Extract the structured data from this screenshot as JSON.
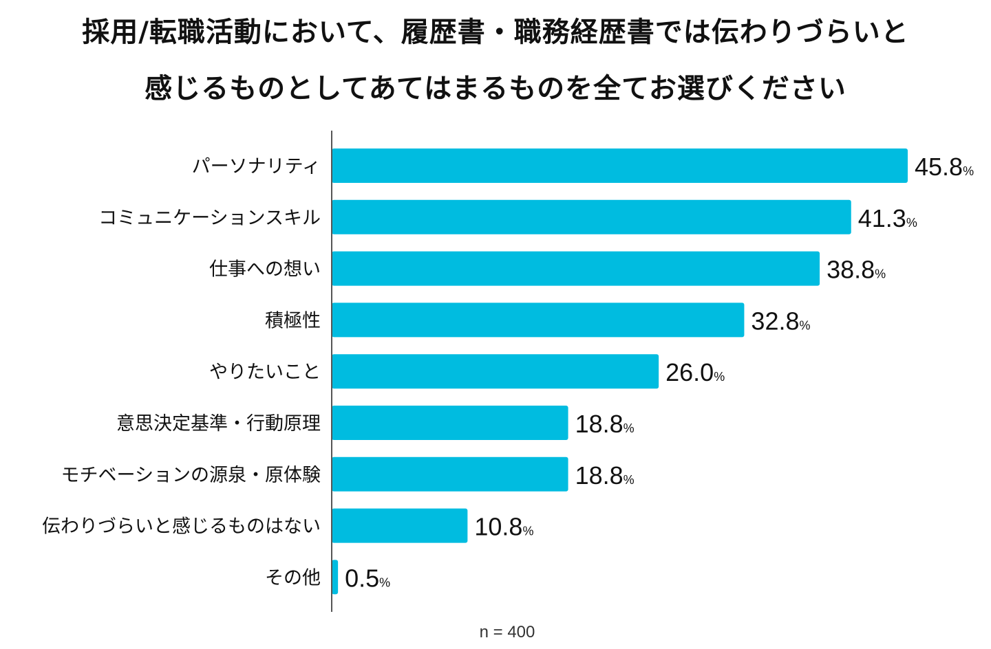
{
  "chart_data": {
    "type": "bar",
    "orientation": "horizontal",
    "title_lines": [
      "採用/転職活動において、履歴書・職務経歴書では伝わりづらいと",
      "感じるものとしてあてはまるものを全てお選びください"
    ],
    "categories": [
      "パーソナリティ",
      "コミュニケーションスキル",
      "仕事への想い",
      "積極性",
      "やりたいこと",
      "意思決定基準・行動原理",
      "モチベーションの源泉・原体験",
      "伝わりづらいと感じるものはない",
      "その他"
    ],
    "values": [
      45.8,
      41.3,
      38.8,
      32.8,
      26.0,
      18.8,
      18.8,
      10.8,
      0.5
    ],
    "value_labels": [
      "45.8",
      "41.3",
      "38.8",
      "32.8",
      "26.0",
      "18.8",
      "18.8",
      "10.8",
      "0.5"
    ],
    "unit": "%",
    "note": "n = 400",
    "bar_color": "#00BCE0",
    "grid": false
  }
}
